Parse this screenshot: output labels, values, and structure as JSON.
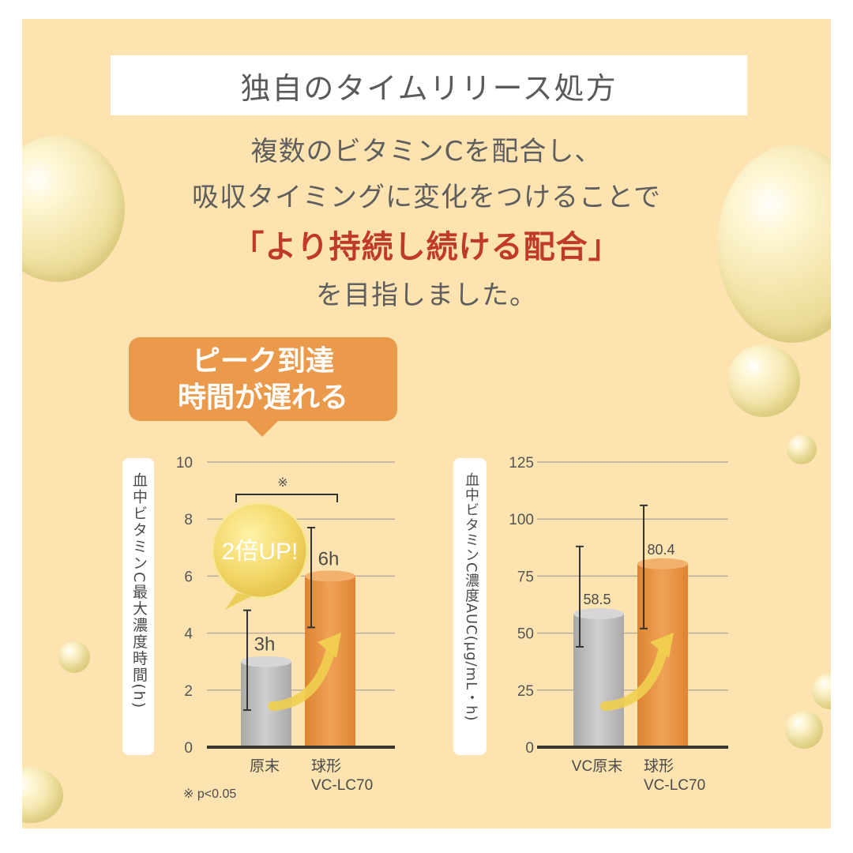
{
  "title": "独自のタイムリリース処方",
  "lead_lines": [
    "複数のビタミンCを配合し、",
    "吸収タイミングに変化をつけることで",
    "「より持続し続ける配合」",
    "を目指しました。"
  ],
  "callout": [
    "ピーク到達",
    "時間が遅れる"
  ],
  "badge": "2倍UP!",
  "footnote": "※ p<0.05",
  "colors": {
    "background": "#fde3b0",
    "callout": "#ea9a4a",
    "gray_bar": "#bdbdbd",
    "orange_bar": "#e8913c",
    "red_text": "#c03a2b"
  },
  "chart_data": [
    {
      "type": "bar",
      "ylabel": "血中ビタミンC最大濃度時間(h)",
      "ylim": [
        0,
        10
      ],
      "yticks": [
        0,
        2,
        4,
        6,
        8,
        10
      ],
      "categories": [
        "原末",
        "球形 VC-LC70"
      ],
      "values": [
        3,
        6
      ],
      "value_labels": [
        "3h",
        "6h"
      ],
      "error_low": [
        1.3,
        4.2
      ],
      "error_high": [
        4.8,
        7.7
      ],
      "significance": "※",
      "grid": true
    },
    {
      "type": "bar",
      "ylabel": "血中ビタミンC濃度AUC(μg/mL・h)",
      "ylim": [
        0,
        125
      ],
      "yticks": [
        0,
        25,
        50,
        75,
        100,
        125
      ],
      "categories": [
        "VC原末",
        "球形 VC-LC70"
      ],
      "values": [
        58.5,
        80.4
      ],
      "value_labels": [
        "58.5",
        "80.4"
      ],
      "error_low": [
        44,
        52
      ],
      "error_high": [
        88,
        106
      ],
      "grid": true
    }
  ]
}
